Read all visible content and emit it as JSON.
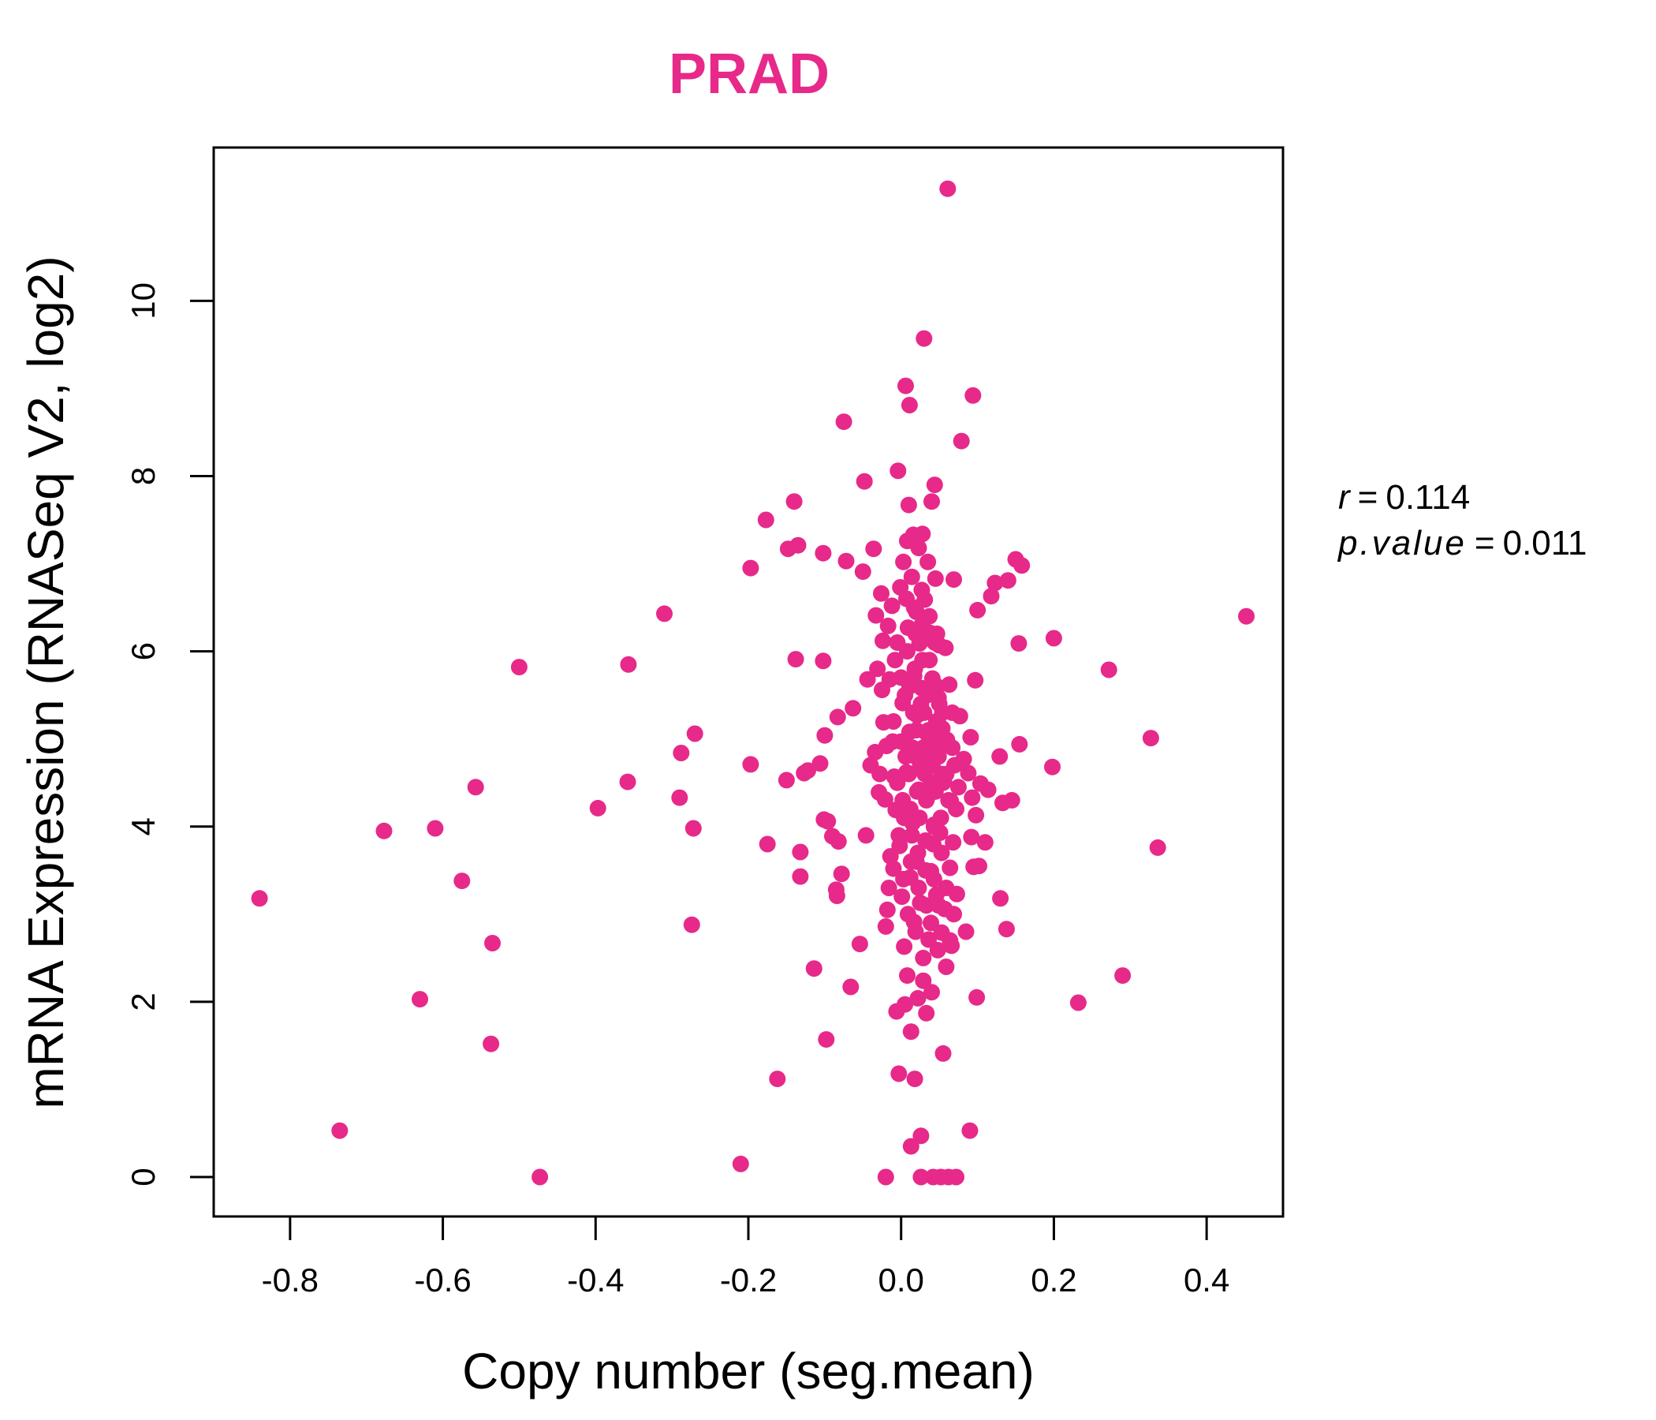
{
  "chart_data": {
    "type": "scatter",
    "title": "PRAD",
    "xlabel": "Copy number (seg.mean)",
    "ylabel": "mRNA Expression (RNASeq V2, log2)",
    "xlim": [
      -0.9,
      0.5
    ],
    "ylim": [
      -0.45,
      11.75
    ],
    "xticks": [
      -0.8,
      -0.6,
      -0.4,
      -0.2,
      0.0,
      0.2,
      0.4
    ],
    "xtick_labels": [
      "-0.8",
      "-0.6",
      "-0.4",
      "-0.2",
      "0.0",
      "0.2",
      "0.4"
    ],
    "yticks": [
      0,
      2,
      4,
      6,
      8,
      10
    ],
    "ytick_labels": [
      "0",
      "2",
      "4",
      "6",
      "8",
      "10"
    ],
    "grid": false,
    "point_color": "#E7298A",
    "title_color": "#E7298A",
    "stats": {
      "r_symbol": "r",
      "r_value": "0.114",
      "p_symbol": "p.value",
      "p_value": "0.011"
    },
    "points": [
      [
        -0.84,
        3.18
      ],
      [
        -0.735,
        0.53
      ],
      [
        -0.677,
        3.95
      ],
      [
        -0.63,
        2.03
      ],
      [
        -0.61,
        3.98
      ],
      [
        -0.575,
        3.38
      ],
      [
        -0.557,
        4.45
      ],
      [
        -0.537,
        1.52
      ],
      [
        -0.535,
        2.67
      ],
      [
        -0.5,
        5.82
      ],
      [
        -0.473,
        0.0
      ],
      [
        -0.397,
        4.21
      ],
      [
        -0.357,
        5.85
      ],
      [
        -0.358,
        4.51
      ],
      [
        -0.31,
        6.43
      ],
      [
        -0.288,
        4.84
      ],
      [
        -0.29,
        4.33
      ],
      [
        -0.27,
        5.06
      ],
      [
        -0.272,
        3.98
      ],
      [
        -0.274,
        2.88
      ],
      [
        -0.21,
        0.15
      ],
      [
        -0.197,
        6.95
      ],
      [
        -0.197,
        4.71
      ],
      [
        -0.177,
        7.5
      ],
      [
        -0.175,
        3.8
      ],
      [
        -0.162,
        1.12
      ],
      [
        -0.15,
        4.53
      ],
      [
        -0.148,
        7.17
      ],
      [
        -0.14,
        7.71
      ],
      [
        -0.138,
        5.91
      ],
      [
        -0.135,
        7.21
      ],
      [
        -0.132,
        3.71
      ],
      [
        -0.132,
        3.43
      ],
      [
        -0.127,
        4.61
      ],
      [
        -0.122,
        4.64
      ],
      [
        -0.114,
        2.38
      ],
      [
        -0.106,
        4.72
      ],
      [
        -0.102,
        7.12
      ],
      [
        -0.102,
        5.89
      ],
      [
        -0.1,
        5.04
      ],
      [
        -0.101,
        4.08
      ],
      [
        -0.098,
        1.57
      ],
      [
        -0.096,
        4.06
      ],
      [
        -0.09,
        3.89
      ],
      [
        -0.085,
        3.28
      ],
      [
        -0.084,
        3.21
      ],
      [
        -0.083,
        5.25
      ],
      [
        -0.082,
        3.83
      ],
      [
        -0.078,
        3.46
      ],
      [
        -0.075,
        8.62
      ],
      [
        -0.072,
        7.03
      ],
      [
        -0.066,
        2.17
      ],
      [
        -0.063,
        5.35
      ],
      [
        -0.054,
        2.66
      ],
      [
        -0.05,
        6.91
      ],
      [
        -0.048,
        7.94
      ],
      [
        -0.046,
        3.9
      ],
      [
        -0.044,
        5.68
      ],
      [
        -0.04,
        4.7
      ],
      [
        -0.036,
        7.17
      ],
      [
        -0.034,
        4.85
      ],
      [
        -0.033,
        6.41
      ],
      [
        -0.031,
        5.8
      ],
      [
        -0.029,
        4.39
      ],
      [
        -0.028,
        4.6
      ],
      [
        -0.026,
        6.66
      ],
      [
        -0.025,
        5.56
      ],
      [
        -0.024,
        6.12
      ],
      [
        -0.023,
        5.19
      ],
      [
        -0.021,
        4.31
      ],
      [
        -0.02,
        2.86
      ],
      [
        -0.02,
        0.0
      ],
      [
        -0.019,
        4.92
      ],
      [
        -0.018,
        3.05
      ],
      [
        -0.017,
        6.29
      ],
      [
        -0.016,
        3.3
      ],
      [
        -0.015,
        5.68
      ],
      [
        -0.014,
        3.66
      ],
      [
        -0.012,
        6.52
      ],
      [
        -0.011,
        4.97
      ],
      [
        -0.01,
        3.52
      ],
      [
        -0.009,
        4.57
      ],
      [
        -0.008,
        5.9
      ],
      [
        -0.007,
        4.19
      ],
      [
        -0.006,
        1.89
      ],
      [
        -0.005,
        6.1
      ],
      [
        -0.004,
        8.06
      ],
      [
        -0.003,
        1.18
      ],
      [
        -0.002,
        3.78
      ],
      [
        -0.001,
        6.73
      ],
      [
        0.0,
        4.97
      ],
      [
        0.001,
        3.2
      ],
      [
        0.002,
        5.41
      ],
      [
        0.003,
        7.02
      ],
      [
        0.004,
        2.63
      ],
      [
        0.005,
        1.97
      ],
      [
        0.006,
        9.03
      ],
      [
        0.007,
        4.62
      ],
      [
        0.008,
        7.26
      ],
      [
        0.008,
        2.3
      ],
      [
        0.009,
        6.27
      ],
      [
        0.01,
        7.67
      ],
      [
        0.011,
        8.81
      ],
      [
        0.011,
        5.08
      ],
      [
        0.012,
        3.42
      ],
      [
        0.013,
        1.66
      ],
      [
        0.013,
        0.35
      ],
      [
        0.014,
        6.85
      ],
      [
        0.015,
        4.04
      ],
      [
        0.016,
        7.33
      ],
      [
        0.017,
        5.72
      ],
      [
        0.017,
        2.91
      ],
      [
        0.018,
        1.12
      ],
      [
        0.019,
        4.8
      ],
      [
        0.02,
        6.45
      ],
      [
        0.02,
        3.6
      ],
      [
        0.021,
        5.27
      ],
      [
        0.022,
        2.04
      ],
      [
        0.023,
        7.18
      ],
      [
        0.023,
        4.42
      ],
      [
        0.024,
        6.09
      ],
      [
        0.025,
        3.13
      ],
      [
        0.026,
        0.47
      ],
      [
        0.026,
        0.0
      ],
      [
        0.027,
        5.58
      ],
      [
        0.028,
        7.34
      ],
      [
        0.029,
        2.24
      ],
      [
        0.03,
        4.66
      ],
      [
        0.03,
        9.57
      ],
      [
        0.031,
        6.59
      ],
      [
        0.032,
        3.84
      ],
      [
        0.033,
        1.87
      ],
      [
        0.034,
        5.06
      ],
      [
        0.035,
        7.02
      ],
      [
        0.036,
        2.71
      ],
      [
        0.037,
        4.37
      ],
      [
        0.038,
        6.21
      ],
      [
        0.039,
        3.49
      ],
      [
        0.04,
        7.71
      ],
      [
        0.04,
        2.11
      ],
      [
        0.041,
        5.69
      ],
      [
        0.042,
        0.0
      ],
      [
        0.043,
        4.02
      ],
      [
        0.044,
        7.9
      ],
      [
        0.045,
        6.83
      ],
      [
        0.046,
        3.22
      ],
      [
        0.047,
        4.86
      ],
      [
        0.048,
        2.59
      ],
      [
        0.049,
        5.47
      ],
      [
        0.05,
        6.07
      ],
      [
        0.051,
        3.93
      ],
      [
        0.052,
        0.0
      ],
      [
        0.053,
        2.79
      ],
      [
        0.054,
        5.12
      ],
      [
        0.055,
        1.41
      ],
      [
        0.056,
        4.52
      ],
      [
        0.057,
        3.06
      ],
      [
        0.058,
        6.04
      ],
      [
        0.059,
        2.4
      ],
      [
        0.06,
        4.99
      ],
      [
        0.061,
        11.28
      ],
      [
        0.062,
        0.0
      ],
      [
        0.063,
        5.62
      ],
      [
        0.064,
        3.53
      ],
      [
        0.065,
        4.29
      ],
      [
        0.066,
        2.64
      ],
      [
        0.067,
        5.3
      ],
      [
        0.068,
        3.82
      ],
      [
        0.069,
        6.82
      ],
      [
        0.07,
        4.7
      ],
      [
        0.072,
        0.0
      ],
      [
        0.073,
        3.23
      ],
      [
        0.075,
        4.45
      ],
      [
        0.077,
        5.26
      ],
      [
        0.079,
        8.4
      ],
      [
        0.082,
        4.77
      ],
      [
        0.085,
        2.8
      ],
      [
        0.088,
        4.61
      ],
      [
        0.09,
        0.53
      ],
      [
        0.091,
        5.02
      ],
      [
        0.092,
        3.88
      ],
      [
        0.093,
        4.33
      ],
      [
        0.094,
        8.92
      ],
      [
        0.095,
        3.54
      ],
      [
        0.097,
        5.67
      ],
      [
        0.098,
        4.13
      ],
      [
        0.099,
        2.05
      ],
      [
        0.1,
        6.47
      ],
      [
        0.102,
        3.55
      ],
      [
        0.104,
        4.49
      ],
      [
        0.11,
        3.82
      ],
      [
        0.114,
        4.42
      ],
      [
        0.118,
        6.63
      ],
      [
        0.123,
        6.78
      ],
      [
        0.129,
        4.8
      ],
      [
        0.13,
        3.18
      ],
      [
        0.133,
        4.27
      ],
      [
        0.138,
        2.83
      ],
      [
        0.14,
        6.81
      ],
      [
        0.145,
        4.3
      ],
      [
        0.15,
        7.05
      ],
      [
        0.154,
        6.09
      ],
      [
        0.155,
        4.94
      ],
      [
        0.158,
        6.98
      ],
      [
        0.2,
        6.15
      ],
      [
        0.198,
        4.68
      ],
      [
        0.232,
        1.99
      ],
      [
        0.272,
        5.79
      ],
      [
        0.29,
        2.3
      ],
      [
        0.327,
        5.01
      ],
      [
        0.336,
        3.76
      ],
      [
        0.452,
        6.4
      ],
      [
        0.01,
        4.6
      ],
      [
        0.015,
        4.9
      ],
      [
        0.02,
        5.1
      ],
      [
        0.025,
        4.7
      ],
      [
        0.03,
        5.3
      ],
      [
        0.035,
        4.8
      ],
      [
        0.04,
        5.0
      ],
      [
        0.045,
        4.4
      ],
      [
        0.05,
        5.4
      ],
      [
        0.055,
        4.5
      ],
      [
        0.005,
        5.5
      ],
      [
        0.012,
        4.2
      ],
      [
        0.018,
        5.8
      ],
      [
        0.024,
        4.1
      ],
      [
        0.028,
        5.9
      ],
      [
        0.033,
        4.3
      ],
      [
        0.038,
        5.6
      ],
      [
        0.043,
        4.0
      ],
      [
        0.048,
        5.2
      ],
      [
        0.053,
        4.6
      ],
      [
        -0.005,
        4.5
      ],
      [
        -0.01,
        5.2
      ],
      [
        0.0,
        5.7
      ],
      [
        0.004,
        4.1
      ],
      [
        0.008,
        6.0
      ],
      [
        0.014,
        3.9
      ],
      [
        0.019,
        6.2
      ],
      [
        0.022,
        3.7
      ],
      [
        0.027,
        6.3
      ],
      [
        0.032,
        3.5
      ],
      [
        0.037,
        5.9
      ],
      [
        0.042,
        3.8
      ],
      [
        0.047,
        5.6
      ],
      [
        0.052,
        4.1
      ],
      [
        0.057,
        5.0
      ],
      [
        0.062,
        4.3
      ],
      [
        0.067,
        4.9
      ],
      [
        0.072,
        4.2
      ],
      [
        0.016,
        5.3
      ],
      [
        0.021,
        4.4
      ],
      [
        0.026,
        5.4
      ],
      [
        0.031,
        4.6
      ],
      [
        0.036,
        5.1
      ],
      [
        0.041,
        4.7
      ],
      [
        0.046,
        5.2
      ],
      [
        0.006,
        4.8
      ],
      [
        0.011,
        5.6
      ],
      [
        0.002,
        4.3
      ],
      [
        0.029,
        4.9
      ],
      [
        0.034,
        5.5
      ],
      [
        0.039,
        4.5
      ],
      [
        0.044,
        6.1
      ],
      [
        0.049,
        4.8
      ],
      [
        0.054,
        5.3
      ],
      [
        0.059,
        4.6
      ],
      [
        0.013,
        3.6
      ],
      [
        0.023,
        3.3
      ],
      [
        0.033,
        3.1
      ],
      [
        0.043,
        3.4
      ],
      [
        0.053,
        3.7
      ],
      [
        0.017,
        6.5
      ],
      [
        0.027,
        6.7
      ],
      [
        0.037,
        6.4
      ],
      [
        0.007,
        6.6
      ],
      [
        0.047,
        6.2
      ],
      [
        -0.003,
        3.9
      ],
      [
        0.003,
        3.4
      ],
      [
        0.009,
        3.0
      ],
      [
        0.019,
        2.8
      ],
      [
        0.029,
        2.5
      ],
      [
        0.039,
        2.9
      ],
      [
        0.049,
        3.1
      ],
      [
        0.059,
        3.3
      ],
      [
        0.064,
        2.7
      ],
      [
        0.069,
        3.0
      ]
    ]
  }
}
